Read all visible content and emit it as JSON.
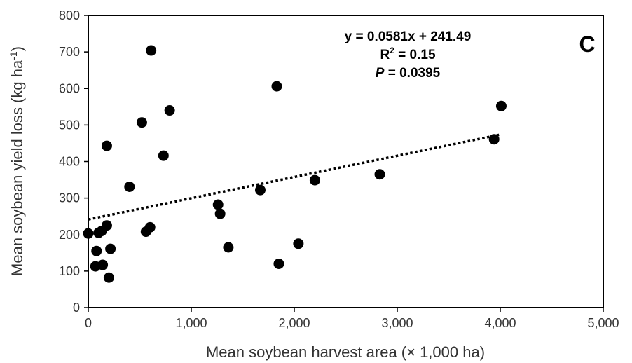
{
  "chart_data": {
    "type": "scatter",
    "panel_label": "C",
    "xlabel": "Mean soybean harvest area (× 1,000 ha)",
    "ylabel_main": "Mean soybean yield loss (kg ha",
    "ylabel_sup": "-1",
    "ylabel_close": ")",
    "xlim": [
      0,
      5000
    ],
    "ylim": [
      0,
      800
    ],
    "xticks": [
      0,
      1000,
      2000,
      3000,
      4000,
      5000
    ],
    "xtick_labels": [
      "0",
      "1,000",
      "2,000",
      "3,000",
      "4,000",
      "5,000"
    ],
    "yticks": [
      0,
      100,
      200,
      300,
      400,
      500,
      600,
      700,
      800
    ],
    "ytick_labels": [
      "0",
      "100",
      "200",
      "300",
      "400",
      "500",
      "600",
      "700",
      "800"
    ],
    "grid": false,
    "legend": "none",
    "trendline": {
      "type": "linear",
      "slope": 0.0581,
      "intercept": 241.49,
      "style": "dotted",
      "x_range": [
        0,
        4000
      ]
    },
    "annotations": {
      "equation": "y = 0.0581x + 241.49",
      "r2_prefix": "R",
      "r2_sup": "2",
      "r2_suffix": " = 0.15",
      "p_italic": "P",
      "p_suffix": " = 0.0395"
    },
    "points": [
      {
        "x": 0,
        "y": 203
      },
      {
        "x": 70,
        "y": 113
      },
      {
        "x": 80,
        "y": 155
      },
      {
        "x": 100,
        "y": 205
      },
      {
        "x": 130,
        "y": 210
      },
      {
        "x": 140,
        "y": 117
      },
      {
        "x": 180,
        "y": 225
      },
      {
        "x": 180,
        "y": 443
      },
      {
        "x": 200,
        "y": 82
      },
      {
        "x": 215,
        "y": 161
      },
      {
        "x": 400,
        "y": 331
      },
      {
        "x": 520,
        "y": 507
      },
      {
        "x": 560,
        "y": 208
      },
      {
        "x": 600,
        "y": 220
      },
      {
        "x": 610,
        "y": 704
      },
      {
        "x": 730,
        "y": 416
      },
      {
        "x": 790,
        "y": 540
      },
      {
        "x": 1260,
        "y": 282
      },
      {
        "x": 1280,
        "y": 257
      },
      {
        "x": 1360,
        "y": 165
      },
      {
        "x": 1670,
        "y": 322
      },
      {
        "x": 1830,
        "y": 606
      },
      {
        "x": 1850,
        "y": 120
      },
      {
        "x": 2040,
        "y": 175
      },
      {
        "x": 2200,
        "y": 349
      },
      {
        "x": 2830,
        "y": 365
      },
      {
        "x": 3940,
        "y": 461
      },
      {
        "x": 4010,
        "y": 552
      }
    ]
  },
  "colors": {
    "marker": "#000000",
    "axis": "#000000",
    "text": "#333333"
  }
}
